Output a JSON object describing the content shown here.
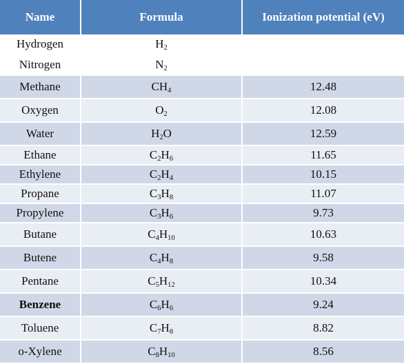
{
  "headers": [
    "Name",
    "Formula",
    "Ionization potential (eV)"
  ],
  "plain_rows": [
    {
      "name": "Hydrogen",
      "formula": [
        [
          "H",
          "2"
        ]
      ]
    },
    {
      "name": "Nitrogen",
      "formula": [
        [
          "N",
          "2"
        ]
      ]
    }
  ],
  "rows": [
    {
      "name": "Methane",
      "formula": [
        [
          "C",
          ""
        ],
        [
          "H",
          "4"
        ]
      ],
      "ip": "12.48",
      "h": 34
    },
    {
      "name": "Oxygen",
      "formula": [
        [
          "O",
          "2"
        ]
      ],
      "ip": "12.08",
      "h": 34
    },
    {
      "name": "Water",
      "formula": [
        [
          "H",
          "2"
        ],
        [
          "O",
          ""
        ]
      ],
      "ip": "12.59",
      "h": 34
    },
    {
      "name": "Ethane",
      "formula": [
        [
          "C",
          "2"
        ],
        [
          "H",
          "6"
        ]
      ],
      "ip": "11.65",
      "h": 28
    },
    {
      "name": "Ethylene",
      "formula": [
        [
          "C",
          "2"
        ],
        [
          "H",
          "4"
        ]
      ],
      "ip": "10.15",
      "h": 28
    },
    {
      "name": "Propane",
      "formula": [
        [
          "C",
          "3"
        ],
        [
          "H",
          "8"
        ]
      ],
      "ip": "11.07",
      "h": 28
    },
    {
      "name": "Propylene",
      "formula": [
        [
          "C",
          "3"
        ],
        [
          "H",
          "6"
        ]
      ],
      "ip": "9.73",
      "h": 28
    },
    {
      "name": "Butane",
      "formula": [
        [
          "C",
          "4"
        ],
        [
          "H",
          "10"
        ]
      ],
      "ip": "10.63",
      "h": 34
    },
    {
      "name": "Butene",
      "formula": [
        [
          "C",
          "4"
        ],
        [
          "H",
          "8"
        ]
      ],
      "ip": "9.58",
      "h": 34
    },
    {
      "name": "Pentane",
      "formula": [
        [
          "C",
          "5"
        ],
        [
          "H",
          "12"
        ]
      ],
      "ip": "10.34",
      "h": 34
    },
    {
      "name": "Benzene",
      "formula": [
        [
          "C",
          "6"
        ],
        [
          "H",
          "6"
        ]
      ],
      "ip": "9.24",
      "h": 34,
      "bold": true
    },
    {
      "name": "Toluene",
      "formula": [
        [
          "C",
          "7"
        ],
        [
          "H",
          "8"
        ]
      ],
      "ip": "8.82",
      "h": 34
    },
    {
      "name": "o-Xylene",
      "formula": [
        [
          "C",
          "8"
        ],
        [
          "H",
          "10"
        ]
      ],
      "ip": "8.56",
      "h": 34
    }
  ]
}
